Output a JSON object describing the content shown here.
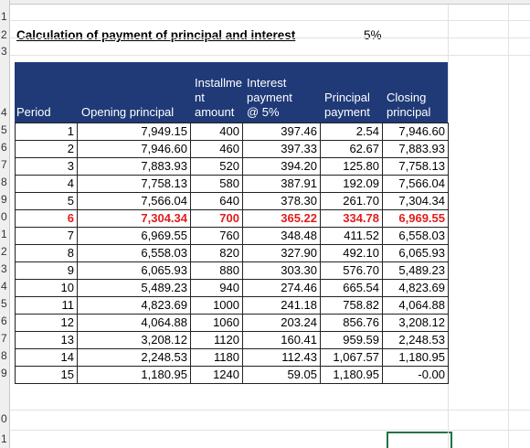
{
  "row_numbers": [
    "1",
    "2",
    "3",
    "4",
    "5",
    "6",
    "7",
    "8",
    "9",
    "0",
    "1",
    "2",
    "3",
    "4",
    "5",
    "6",
    "7",
    "8",
    "9",
    "0",
    "1"
  ],
  "title": "Calculation of payment of principal and interest",
  "rate": "5%",
  "table": {
    "headers": [
      [
        "Period"
      ],
      [
        "Opening principal"
      ],
      [
        "Installme",
        "nt",
        "amount"
      ],
      [
        "Interest",
        "payment",
        "@ 5%"
      ],
      [
        "Principal",
        "payment"
      ],
      [
        "Closing",
        "principal"
      ]
    ],
    "rows": [
      [
        "1",
        "7,949.15",
        "400",
        "397.46",
        "2.54",
        "7,946.60"
      ],
      [
        "2",
        "7,946.60",
        "460",
        "397.33",
        "62.67",
        "7,883.93"
      ],
      [
        "3",
        "7,883.93",
        "520",
        "394.20",
        "125.80",
        "7,758.13"
      ],
      [
        "4",
        "7,758.13",
        "580",
        "387.91",
        "192.09",
        "7,566.04"
      ],
      [
        "5",
        "7,566.04",
        "640",
        "378.30",
        "261.70",
        "7,304.34"
      ],
      [
        "6",
        "7,304.34",
        "700",
        "365.22",
        "334.78",
        "6,969.55"
      ],
      [
        "7",
        "6,969.55",
        "760",
        "348.48",
        "411.52",
        "6,558.03"
      ],
      [
        "8",
        "6,558.03",
        "820",
        "327.90",
        "492.10",
        "6,065.93"
      ],
      [
        "9",
        "6,065.93",
        "880",
        "303.30",
        "576.70",
        "5,489.23"
      ],
      [
        "10",
        "5,489.23",
        "940",
        "274.46",
        "665.54",
        "4,823.69"
      ],
      [
        "11",
        "4,823.69",
        "1000",
        "241.18",
        "758.82",
        "4,064.88"
      ],
      [
        "12",
        "4,064.88",
        "1060",
        "203.24",
        "856.76",
        "3,208.12"
      ],
      [
        "13",
        "3,208.12",
        "1120",
        "160.41",
        "959.59",
        "2,248.53"
      ],
      [
        "14",
        "2,248.53",
        "1180",
        "112.43",
        "1,067.57",
        "1,180.95"
      ],
      [
        "15",
        "1,180.95",
        "1240",
        "59.05",
        "1,180.95",
        "-0.00"
      ]
    ]
  }
}
